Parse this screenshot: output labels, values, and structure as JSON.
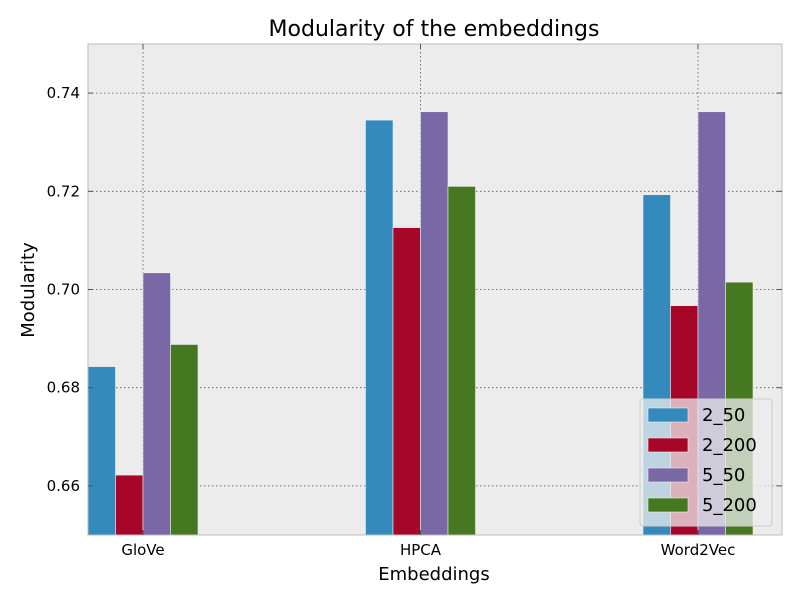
{
  "chart_data": {
    "type": "bar",
    "title": "Modularity of the embeddings",
    "xlabel": "Embeddings",
    "ylabel": "Modularity",
    "categories": [
      "GloVe",
      "HPCA",
      "Word2Vec"
    ],
    "ylim": [
      0.65,
      0.75
    ],
    "yticks": [
      "0.66",
      "0.68",
      "0.70",
      "0.72",
      "0.74"
    ],
    "grid": true,
    "legend_position": "lower-right",
    "series": [
      {
        "name": "2_50",
        "color": "#348abd",
        "values": [
          0.6843,
          0.7345,
          0.7193
        ]
      },
      {
        "name": "2_200",
        "color": "#a60628",
        "values": [
          0.6622,
          0.7126,
          0.6967
        ]
      },
      {
        "name": "5_50",
        "color": "#7a68a6",
        "values": [
          0.7034,
          0.7362,
          0.7362
        ]
      },
      {
        "name": "5_200",
        "color": "#467821",
        "values": [
          0.6888,
          0.721,
          0.7015
        ]
      }
    ]
  }
}
